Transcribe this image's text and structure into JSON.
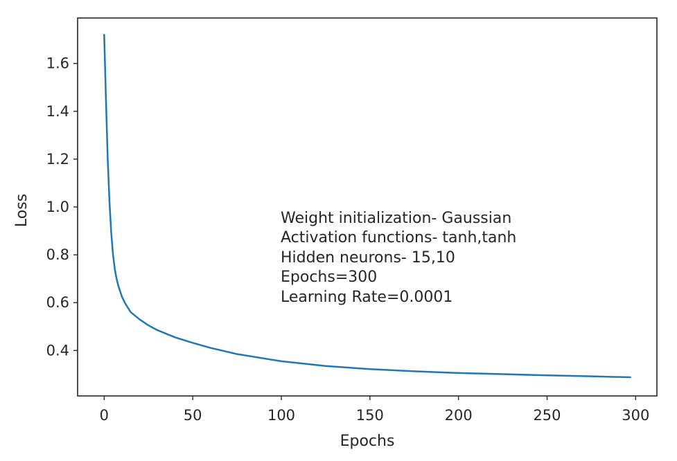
{
  "chart_data": {
    "type": "line",
    "title": "",
    "xlabel": "Epochs",
    "ylabel": "Loss",
    "xlim": [
      -15,
      312
    ],
    "ylim": [
      0.21,
      1.79
    ],
    "x_ticks": [
      0,
      50,
      100,
      150,
      200,
      250,
      300
    ],
    "y_ticks": [
      0.4,
      0.6,
      0.8,
      1.0,
      1.2,
      1.4,
      1.6
    ],
    "x_tick_labels": [
      "0",
      "50",
      "100",
      "150",
      "200",
      "250",
      "300"
    ],
    "y_tick_labels": [
      "0.4",
      "0.6",
      "0.8",
      "1.0",
      "1.2",
      "1.4",
      "1.6"
    ],
    "grid": false,
    "legend": "none",
    "series": [
      {
        "color": "#1f77b4",
        "x": [
          0,
          1,
          2,
          3,
          4,
          5,
          6,
          7,
          8,
          10,
          12,
          15,
          20,
          25,
          30,
          40,
          50,
          60,
          75,
          100,
          125,
          150,
          175,
          200,
          225,
          250,
          275,
          297
        ],
        "y": [
          1.72,
          1.45,
          1.2,
          1.02,
          0.89,
          0.8,
          0.74,
          0.7,
          0.67,
          0.625,
          0.595,
          0.56,
          0.53,
          0.505,
          0.485,
          0.455,
          0.432,
          0.411,
          0.385,
          0.355,
          0.335,
          0.322,
          0.313,
          0.306,
          0.301,
          0.296,
          0.292,
          0.288
        ]
      }
    ],
    "annotation": [
      "Weight initialization- Gaussian",
      "Activation functions- tanh,tanh",
      "Hidden neurons- 15,10",
      "Epochs=300",
      "Learning Rate=0.0001"
    ]
  }
}
